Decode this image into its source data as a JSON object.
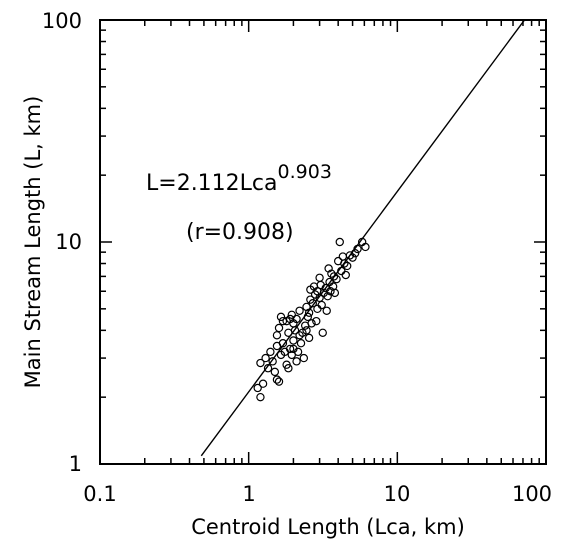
{
  "chart_data": {
    "type": "scatter",
    "title": "",
    "xlabel": "Centroid Length (Lca, km)",
    "ylabel": "Main Stream Length (L, km)",
    "x_scale": "log",
    "y_scale": "log",
    "xlim": [
      0.1,
      100
    ],
    "ylim": [
      1,
      100
    ],
    "x_ticks": [
      "0.1",
      "1",
      "10",
      "100"
    ],
    "y_ticks": [
      "1",
      "10",
      "100"
    ],
    "grid": false,
    "annotations": {
      "equation_base": "L=2.112Lca",
      "equation_exponent": "0.903",
      "correlation": "(r=0.908)"
    },
    "fit_line": {
      "coefficient": 2.112,
      "exponent": 0.903,
      "x_range": [
        0.48,
        80
      ]
    },
    "points": [
      [
        1.2,
        2.0
      ],
      [
        1.15,
        2.2
      ],
      [
        1.25,
        2.3
      ],
      [
        1.2,
        2.85
      ],
      [
        1.3,
        3.0
      ],
      [
        1.35,
        2.7
      ],
      [
        1.45,
        2.9
      ],
      [
        1.5,
        2.6
      ],
      [
        1.55,
        2.4
      ],
      [
        1.6,
        2.35
      ],
      [
        1.65,
        3.1
      ],
      [
        1.7,
        3.5
      ],
      [
        1.55,
        3.8
      ],
      [
        1.6,
        4.1
      ],
      [
        1.7,
        4.4
      ],
      [
        1.65,
        4.6
      ],
      [
        1.8,
        4.4
      ],
      [
        1.85,
        3.9
      ],
      [
        1.9,
        3.3
      ],
      [
        1.95,
        3.1
      ],
      [
        1.8,
        2.8
      ],
      [
        1.85,
        2.7
      ],
      [
        2.0,
        3.6
      ],
      [
        2.05,
        4.0
      ],
      [
        2.1,
        4.5
      ],
      [
        2.0,
        4.3
      ],
      [
        2.2,
        3.8
      ],
      [
        2.25,
        3.5
      ],
      [
        2.3,
        3.9
      ],
      [
        2.15,
        3.2
      ],
      [
        2.4,
        4.2
      ],
      [
        2.5,
        4.6
      ],
      [
        2.45,
        5.1
      ],
      [
        2.6,
        5.5
      ],
      [
        2.55,
        4.8
      ],
      [
        2.7,
        5.3
      ],
      [
        2.8,
        5.8
      ],
      [
        2.75,
        6.3
      ],
      [
        2.9,
        6.0
      ],
      [
        3.0,
        5.6
      ],
      [
        3.1,
        5.2
      ],
      [
        3.05,
        6.4
      ],
      [
        3.2,
        5.9
      ],
      [
        3.3,
        6.2
      ],
      [
        3.4,
        5.7
      ],
      [
        3.5,
        6.6
      ],
      [
        3.6,
        7.2
      ],
      [
        3.45,
        7.6
      ],
      [
        3.7,
        6.3
      ],
      [
        3.8,
        5.9
      ],
      [
        3.9,
        6.8
      ],
      [
        4.0,
        8.2
      ],
      [
        4.2,
        7.4
      ],
      [
        4.1,
        10.0
      ],
      [
        4.4,
        8.0
      ],
      [
        4.6,
        7.8
      ],
      [
        4.8,
        8.7
      ],
      [
        5.0,
        8.5
      ],
      [
        5.4,
        9.3
      ],
      [
        5.8,
        10.0
      ],
      [
        6.1,
        9.5
      ],
      [
        1.95,
        4.7
      ],
      [
        2.35,
        3.0
      ],
      [
        2.55,
        3.7
      ],
      [
        2.65,
        4.3
      ],
      [
        2.9,
        5.0
      ],
      [
        3.35,
        4.9
      ],
      [
        3.15,
        3.9
      ],
      [
        2.85,
        4.4
      ],
      [
        2.1,
        2.9
      ],
      [
        2.0,
        3.3
      ],
      [
        1.75,
        3.2
      ],
      [
        1.4,
        3.2
      ],
      [
        3.75,
        7.0
      ],
      [
        4.3,
        8.6
      ],
      [
        3.0,
        6.9
      ],
      [
        3.55,
        6.0
      ],
      [
        2.2,
        4.9
      ],
      [
        2.45,
        4.0
      ],
      [
        4.5,
        7.1
      ],
      [
        5.2,
        8.9
      ],
      [
        1.55,
        3.4
      ],
      [
        1.9,
        4.5
      ],
      [
        2.6,
        6.1
      ]
    ]
  }
}
